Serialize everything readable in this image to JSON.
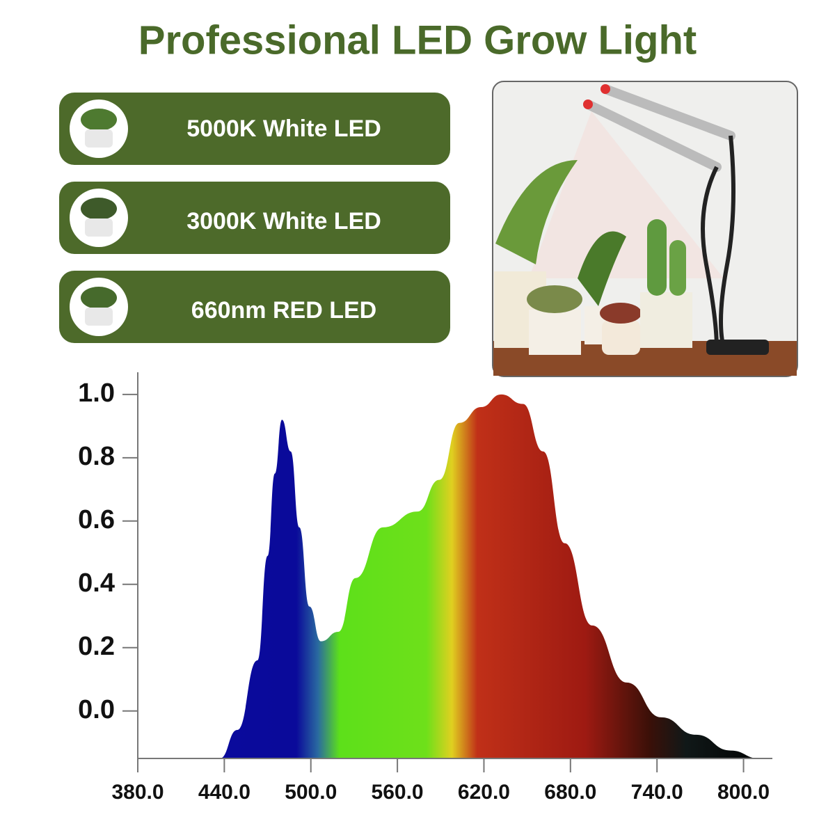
{
  "header": {
    "title": "Professional LED Grow Light"
  },
  "features": [
    "5000K White LED",
    "3000K White LED",
    "660nm RED LED"
  ],
  "chart_data": {
    "type": "area",
    "x": [
      437,
      449,
      463,
      470,
      475,
      480,
      486,
      492,
      499,
      507,
      519,
      531,
      550,
      574,
      589,
      603,
      618,
      632,
      647,
      661,
      676,
      695,
      719,
      743,
      767,
      791,
      811
    ],
    "series": [
      {
        "values": [
          -0.15,
          -0.06,
          0.16,
          0.49,
          0.75,
          0.92,
          0.82,
          0.58,
          0.33,
          0.22,
          0.25,
          0.42,
          0.58,
          0.63,
          0.73,
          0.91,
          0.96,
          1.0,
          0.97,
          0.82,
          0.53,
          0.27,
          0.09,
          -0.02,
          -0.075,
          -0.125,
          -0.15
        ]
      }
    ],
    "xlim": [
      380,
      820
    ],
    "ylim": [
      -0.15,
      1.07
    ],
    "xticks": [
      {
        "value": 380,
        "label": "380.0"
      },
      {
        "value": 440,
        "label": "440.0"
      },
      {
        "value": 500,
        "label": "500.0"
      },
      {
        "value": 560,
        "label": "560.0"
      },
      {
        "value": 620,
        "label": "620.0"
      },
      {
        "value": 680,
        "label": "680.0"
      },
      {
        "value": 740,
        "label": "740.0"
      },
      {
        "value": 800,
        "label": "800.0"
      }
    ],
    "yticks": [
      {
        "value": 0,
        "label": "0.0"
      },
      {
        "value": 0.2,
        "label": "0.2"
      },
      {
        "value": 0.4,
        "label": "0.4"
      },
      {
        "value": 0.6,
        "label": "0.6"
      },
      {
        "value": 0.8,
        "label": "0.8"
      },
      {
        "value": 1,
        "label": "1.0"
      }
    ]
  }
}
